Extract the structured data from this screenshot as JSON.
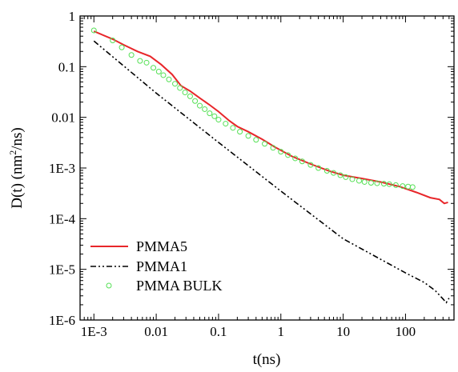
{
  "chart_data": {
    "type": "line",
    "xscale": "log",
    "yscale": "log",
    "xlim": [
      0.0006,
      600
    ],
    "ylim": [
      1e-06,
      1
    ],
    "x_ticks": [
      {
        "value": 0.001,
        "label": "1E-3"
      },
      {
        "value": 0.01,
        "label": "0.01"
      },
      {
        "value": 0.1,
        "label": "0.1"
      },
      {
        "value": 1,
        "label": "1"
      },
      {
        "value": 10,
        "label": "10"
      },
      {
        "value": 100,
        "label": "100"
      }
    ],
    "y_ticks": [
      {
        "value": 1,
        "label": "1"
      },
      {
        "value": 0.1,
        "label": "0.1"
      },
      {
        "value": 0.01,
        "label": "0.01"
      },
      {
        "value": 0.001,
        "label": "1E-3"
      },
      {
        "value": 0.0001,
        "label": "1E-4"
      },
      {
        "value": 1e-05,
        "label": "1E-5"
      },
      {
        "value": 1e-06,
        "label": "1E-6"
      }
    ],
    "xlabel": "t(ns)",
    "ylabel_main": "D(t) (nm",
    "ylabel_sup": "2",
    "ylabel_tail": "/ns)",
    "legend_position": "bottom-left",
    "grid": false,
    "series": [
      {
        "name": "PMMA5",
        "style": "solid",
        "color": "#e8262a",
        "x": [
          0.001,
          0.002,
          0.003,
          0.005,
          0.008,
          0.012,
          0.018,
          0.025,
          0.035,
          0.05,
          0.07,
          0.1,
          0.15,
          0.2,
          0.3,
          0.5,
          0.8,
          1.5,
          3,
          6,
          10,
          20,
          40,
          80,
          150,
          250,
          350,
          420,
          480
        ],
        "y": [
          0.5,
          0.35,
          0.27,
          0.2,
          0.16,
          0.11,
          0.07,
          0.042,
          0.033,
          0.024,
          0.018,
          0.013,
          0.0085,
          0.0066,
          0.0052,
          0.0037,
          0.0026,
          0.0017,
          0.0012,
          0.00087,
          0.00072,
          0.00062,
          0.00053,
          0.00043,
          0.00033,
          0.00026,
          0.00024,
          0.0002,
          0.00021
        ]
      },
      {
        "name": "PMMA1",
        "style": "dash-dot-dot",
        "color": "#000000",
        "x": [
          0.001,
          0.01,
          0.1,
          1,
          10,
          100,
          200,
          300,
          400,
          450,
          500
        ],
        "y": [
          0.32,
          0.03,
          0.0032,
          0.00035,
          4e-05,
          8.5e-06,
          5.5e-06,
          3.8e-06,
          2.6e-06,
          2.2e-06,
          2.7e-06
        ]
      },
      {
        "name": "PMMA BULK",
        "style": "open-circles",
        "color": "#55e055",
        "x": [
          0.001,
          0.002,
          0.0028,
          0.004,
          0.0055,
          0.007,
          0.009,
          0.011,
          0.013,
          0.016,
          0.02,
          0.024,
          0.029,
          0.035,
          0.042,
          0.05,
          0.06,
          0.072,
          0.086,
          0.1,
          0.13,
          0.17,
          0.22,
          0.3,
          0.4,
          0.55,
          0.75,
          1,
          1.3,
          1.7,
          2.2,
          3,
          4,
          5.5,
          7,
          9,
          11,
          14,
          18,
          22,
          28,
          35,
          45,
          55,
          70,
          90,
          110,
          130
        ],
        "y": [
          0.52,
          0.33,
          0.24,
          0.17,
          0.13,
          0.12,
          0.095,
          0.08,
          0.068,
          0.056,
          0.046,
          0.038,
          0.031,
          0.026,
          0.021,
          0.017,
          0.0145,
          0.012,
          0.0105,
          0.009,
          0.0075,
          0.0062,
          0.0052,
          0.0043,
          0.0036,
          0.003,
          0.0025,
          0.0021,
          0.0018,
          0.00155,
          0.00135,
          0.00115,
          0.001,
          0.00088,
          0.0008,
          0.00072,
          0.00066,
          0.0006,
          0.00056,
          0.00053,
          0.00051,
          0.0005,
          0.00049,
          0.00048,
          0.00046,
          0.00044,
          0.00043,
          0.00042
        ]
      }
    ]
  }
}
